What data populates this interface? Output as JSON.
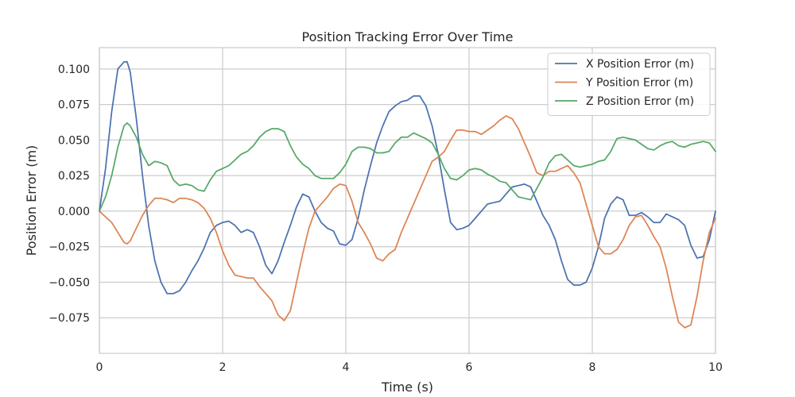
{
  "chart_data": {
    "type": "line",
    "title": "Position Tracking Error Over Time",
    "xlabel": "Time (s)",
    "ylabel": "Position Error (m)",
    "xlim": [
      0,
      10
    ],
    "ylim": [
      -0.1,
      0.115
    ],
    "xticks": [
      0,
      2,
      4,
      6,
      8,
      10
    ],
    "xtick_labels": [
      "0",
      "2",
      "4",
      "6",
      "8",
      "10"
    ],
    "yticks": [
      -0.075,
      -0.05,
      -0.025,
      0.0,
      0.025,
      0.05,
      0.075,
      0.1
    ],
    "ytick_labels": [
      "−0.075",
      "−0.050",
      "−0.025",
      "0.000",
      "0.025",
      "0.050",
      "0.075",
      "0.100"
    ],
    "grid": true,
    "legend_position": "top-right",
    "series": [
      {
        "name": "X Position Error (m)",
        "color": "#4c72b0",
        "x": [
          0,
          0.1,
          0.2,
          0.3,
          0.4,
          0.45,
          0.5,
          0.6,
          0.7,
          0.8,
          0.9,
          1.0,
          1.1,
          1.2,
          1.3,
          1.4,
          1.5,
          1.6,
          1.7,
          1.8,
          1.9,
          2.0,
          2.1,
          2.2,
          2.3,
          2.4,
          2.5,
          2.6,
          2.7,
          2.8,
          2.9,
          3.0,
          3.1,
          3.2,
          3.3,
          3.4,
          3.5,
          3.6,
          3.7,
          3.8,
          3.9,
          4.0,
          4.1,
          4.2,
          4.3,
          4.4,
          4.5,
          4.6,
          4.7,
          4.8,
          4.9,
          5.0,
          5.1,
          5.2,
          5.3,
          5.4,
          5.5,
          5.6,
          5.7,
          5.8,
          5.9,
          6.0,
          6.1,
          6.2,
          6.3,
          6.4,
          6.5,
          6.6,
          6.7,
          6.8,
          6.9,
          7.0,
          7.1,
          7.2,
          7.3,
          7.4,
          7.5,
          7.6,
          7.7,
          7.8,
          7.9,
          8.0,
          8.1,
          8.2,
          8.3,
          8.4,
          8.5,
          8.6,
          8.7,
          8.8,
          8.9,
          9.0,
          9.1,
          9.2,
          9.3,
          9.4,
          9.5,
          9.6,
          9.7,
          9.8,
          9.9,
          10.0
        ],
        "y": [
          0.0,
          0.03,
          0.07,
          0.1,
          0.105,
          0.105,
          0.098,
          0.065,
          0.025,
          -0.01,
          -0.035,
          -0.05,
          -0.058,
          -0.058,
          -0.056,
          -0.05,
          -0.042,
          -0.035,
          -0.026,
          -0.015,
          -0.01,
          -0.008,
          -0.007,
          -0.01,
          -0.015,
          -0.013,
          -0.015,
          -0.025,
          -0.038,
          -0.044,
          -0.035,
          -0.022,
          -0.01,
          0.003,
          0.012,
          0.01,
          0.0,
          -0.008,
          -0.012,
          -0.014,
          -0.023,
          -0.024,
          -0.02,
          -0.005,
          0.015,
          0.032,
          0.048,
          0.06,
          0.07,
          0.074,
          0.077,
          0.078,
          0.081,
          0.081,
          0.074,
          0.06,
          0.04,
          0.015,
          -0.008,
          -0.013,
          -0.012,
          -0.01,
          -0.005,
          0.0,
          0.005,
          0.006,
          0.007,
          0.012,
          0.017,
          0.018,
          0.019,
          0.017,
          0.007,
          -0.003,
          -0.01,
          -0.02,
          -0.035,
          -0.048,
          -0.052,
          -0.052,
          -0.05,
          -0.04,
          -0.025,
          -0.005,
          0.005,
          0.01,
          0.008,
          -0.003,
          -0.003,
          -0.001,
          -0.004,
          -0.008,
          -0.008,
          -0.002,
          -0.004,
          -0.006,
          -0.01,
          -0.024,
          -0.033,
          -0.032,
          -0.02,
          0.0
        ]
      },
      {
        "name": "Y Position Error (m)",
        "color": "#dd8452",
        "x": [
          0,
          0.1,
          0.2,
          0.3,
          0.4,
          0.45,
          0.5,
          0.6,
          0.7,
          0.8,
          0.9,
          1.0,
          1.1,
          1.2,
          1.3,
          1.4,
          1.5,
          1.6,
          1.7,
          1.8,
          1.9,
          2.0,
          2.1,
          2.2,
          2.3,
          2.4,
          2.5,
          2.6,
          2.7,
          2.8,
          2.9,
          3.0,
          3.1,
          3.2,
          3.3,
          3.4,
          3.5,
          3.6,
          3.7,
          3.8,
          3.9,
          4.0,
          4.1,
          4.2,
          4.3,
          4.4,
          4.5,
          4.6,
          4.7,
          4.8,
          4.9,
          5.0,
          5.1,
          5.2,
          5.3,
          5.4,
          5.5,
          5.6,
          5.7,
          5.8,
          5.9,
          6.0,
          6.1,
          6.2,
          6.3,
          6.4,
          6.5,
          6.6,
          6.7,
          6.8,
          6.9,
          7.0,
          7.1,
          7.2,
          7.3,
          7.4,
          7.5,
          7.6,
          7.7,
          7.8,
          7.9,
          8.0,
          8.1,
          8.2,
          8.3,
          8.4,
          8.5,
          8.6,
          8.7,
          8.8,
          8.9,
          9.0,
          9.1,
          9.2,
          9.3,
          9.4,
          9.5,
          9.6,
          9.7,
          9.8,
          9.9,
          10.0
        ],
        "y": [
          0.0,
          -0.004,
          -0.008,
          -0.015,
          -0.022,
          -0.023,
          -0.021,
          -0.012,
          -0.003,
          0.004,
          0.009,
          0.009,
          0.008,
          0.006,
          0.009,
          0.009,
          0.008,
          0.006,
          0.002,
          -0.005,
          -0.015,
          -0.028,
          -0.038,
          -0.045,
          -0.046,
          -0.047,
          -0.047,
          -0.053,
          -0.058,
          -0.063,
          -0.073,
          -0.077,
          -0.07,
          -0.05,
          -0.03,
          -0.012,
          0.0,
          0.005,
          0.01,
          0.016,
          0.019,
          0.018,
          0.007,
          -0.008,
          -0.015,
          -0.023,
          -0.033,
          -0.035,
          -0.03,
          -0.027,
          -0.015,
          -0.005,
          0.005,
          0.015,
          0.025,
          0.035,
          0.038,
          0.042,
          0.05,
          0.057,
          0.057,
          0.056,
          0.056,
          0.054,
          0.057,
          0.06,
          0.064,
          0.067,
          0.065,
          0.058,
          0.048,
          0.038,
          0.027,
          0.025,
          0.028,
          0.028,
          0.03,
          0.032,
          0.027,
          0.02,
          0.005,
          -0.01,
          -0.025,
          -0.03,
          -0.03,
          -0.027,
          -0.02,
          -0.01,
          -0.004,
          -0.003,
          -0.01,
          -0.018,
          -0.025,
          -0.04,
          -0.06,
          -0.078,
          -0.082,
          -0.08,
          -0.06,
          -0.035,
          -0.015,
          -0.005
        ]
      },
      {
        "name": "Z Position Error (m)",
        "color": "#55a868",
        "x": [
          0,
          0.1,
          0.2,
          0.3,
          0.4,
          0.45,
          0.5,
          0.6,
          0.7,
          0.8,
          0.9,
          1.0,
          1.1,
          1.2,
          1.3,
          1.4,
          1.5,
          1.6,
          1.7,
          1.8,
          1.9,
          2.0,
          2.1,
          2.2,
          2.3,
          2.4,
          2.5,
          2.6,
          2.7,
          2.8,
          2.9,
          3.0,
          3.1,
          3.2,
          3.3,
          3.4,
          3.5,
          3.6,
          3.7,
          3.8,
          3.9,
          4.0,
          4.1,
          4.2,
          4.3,
          4.4,
          4.5,
          4.6,
          4.7,
          4.8,
          4.9,
          5.0,
          5.1,
          5.2,
          5.3,
          5.4,
          5.5,
          5.6,
          5.7,
          5.8,
          5.9,
          6.0,
          6.1,
          6.2,
          6.3,
          6.4,
          6.5,
          6.6,
          6.7,
          6.8,
          6.9,
          7.0,
          7.1,
          7.2,
          7.3,
          7.4,
          7.5,
          7.6,
          7.7,
          7.8,
          7.9,
          8.0,
          8.1,
          8.2,
          8.3,
          8.4,
          8.5,
          8.6,
          8.7,
          8.8,
          8.9,
          9.0,
          9.1,
          9.2,
          9.3,
          9.4,
          9.5,
          9.6,
          9.7,
          9.8,
          9.9,
          10.0
        ],
        "y": [
          0.0,
          0.01,
          0.025,
          0.045,
          0.06,
          0.062,
          0.06,
          0.052,
          0.04,
          0.032,
          0.035,
          0.034,
          0.032,
          0.022,
          0.018,
          0.019,
          0.018,
          0.015,
          0.014,
          0.022,
          0.028,
          0.03,
          0.032,
          0.036,
          0.04,
          0.042,
          0.046,
          0.052,
          0.056,
          0.058,
          0.058,
          0.056,
          0.046,
          0.038,
          0.033,
          0.03,
          0.025,
          0.023,
          0.023,
          0.023,
          0.027,
          0.033,
          0.042,
          0.045,
          0.045,
          0.044,
          0.041,
          0.041,
          0.042,
          0.048,
          0.052,
          0.052,
          0.055,
          0.053,
          0.051,
          0.048,
          0.04,
          0.03,
          0.023,
          0.022,
          0.025,
          0.029,
          0.03,
          0.029,
          0.026,
          0.024,
          0.021,
          0.02,
          0.015,
          0.01,
          0.009,
          0.008,
          0.016,
          0.024,
          0.034,
          0.039,
          0.04,
          0.036,
          0.032,
          0.031,
          0.032,
          0.033,
          0.035,
          0.036,
          0.042,
          0.051,
          0.052,
          0.051,
          0.05,
          0.047,
          0.044,
          0.043,
          0.046,
          0.048,
          0.049,
          0.046,
          0.045,
          0.047,
          0.048,
          0.049,
          0.048,
          0.042
        ]
      }
    ]
  }
}
